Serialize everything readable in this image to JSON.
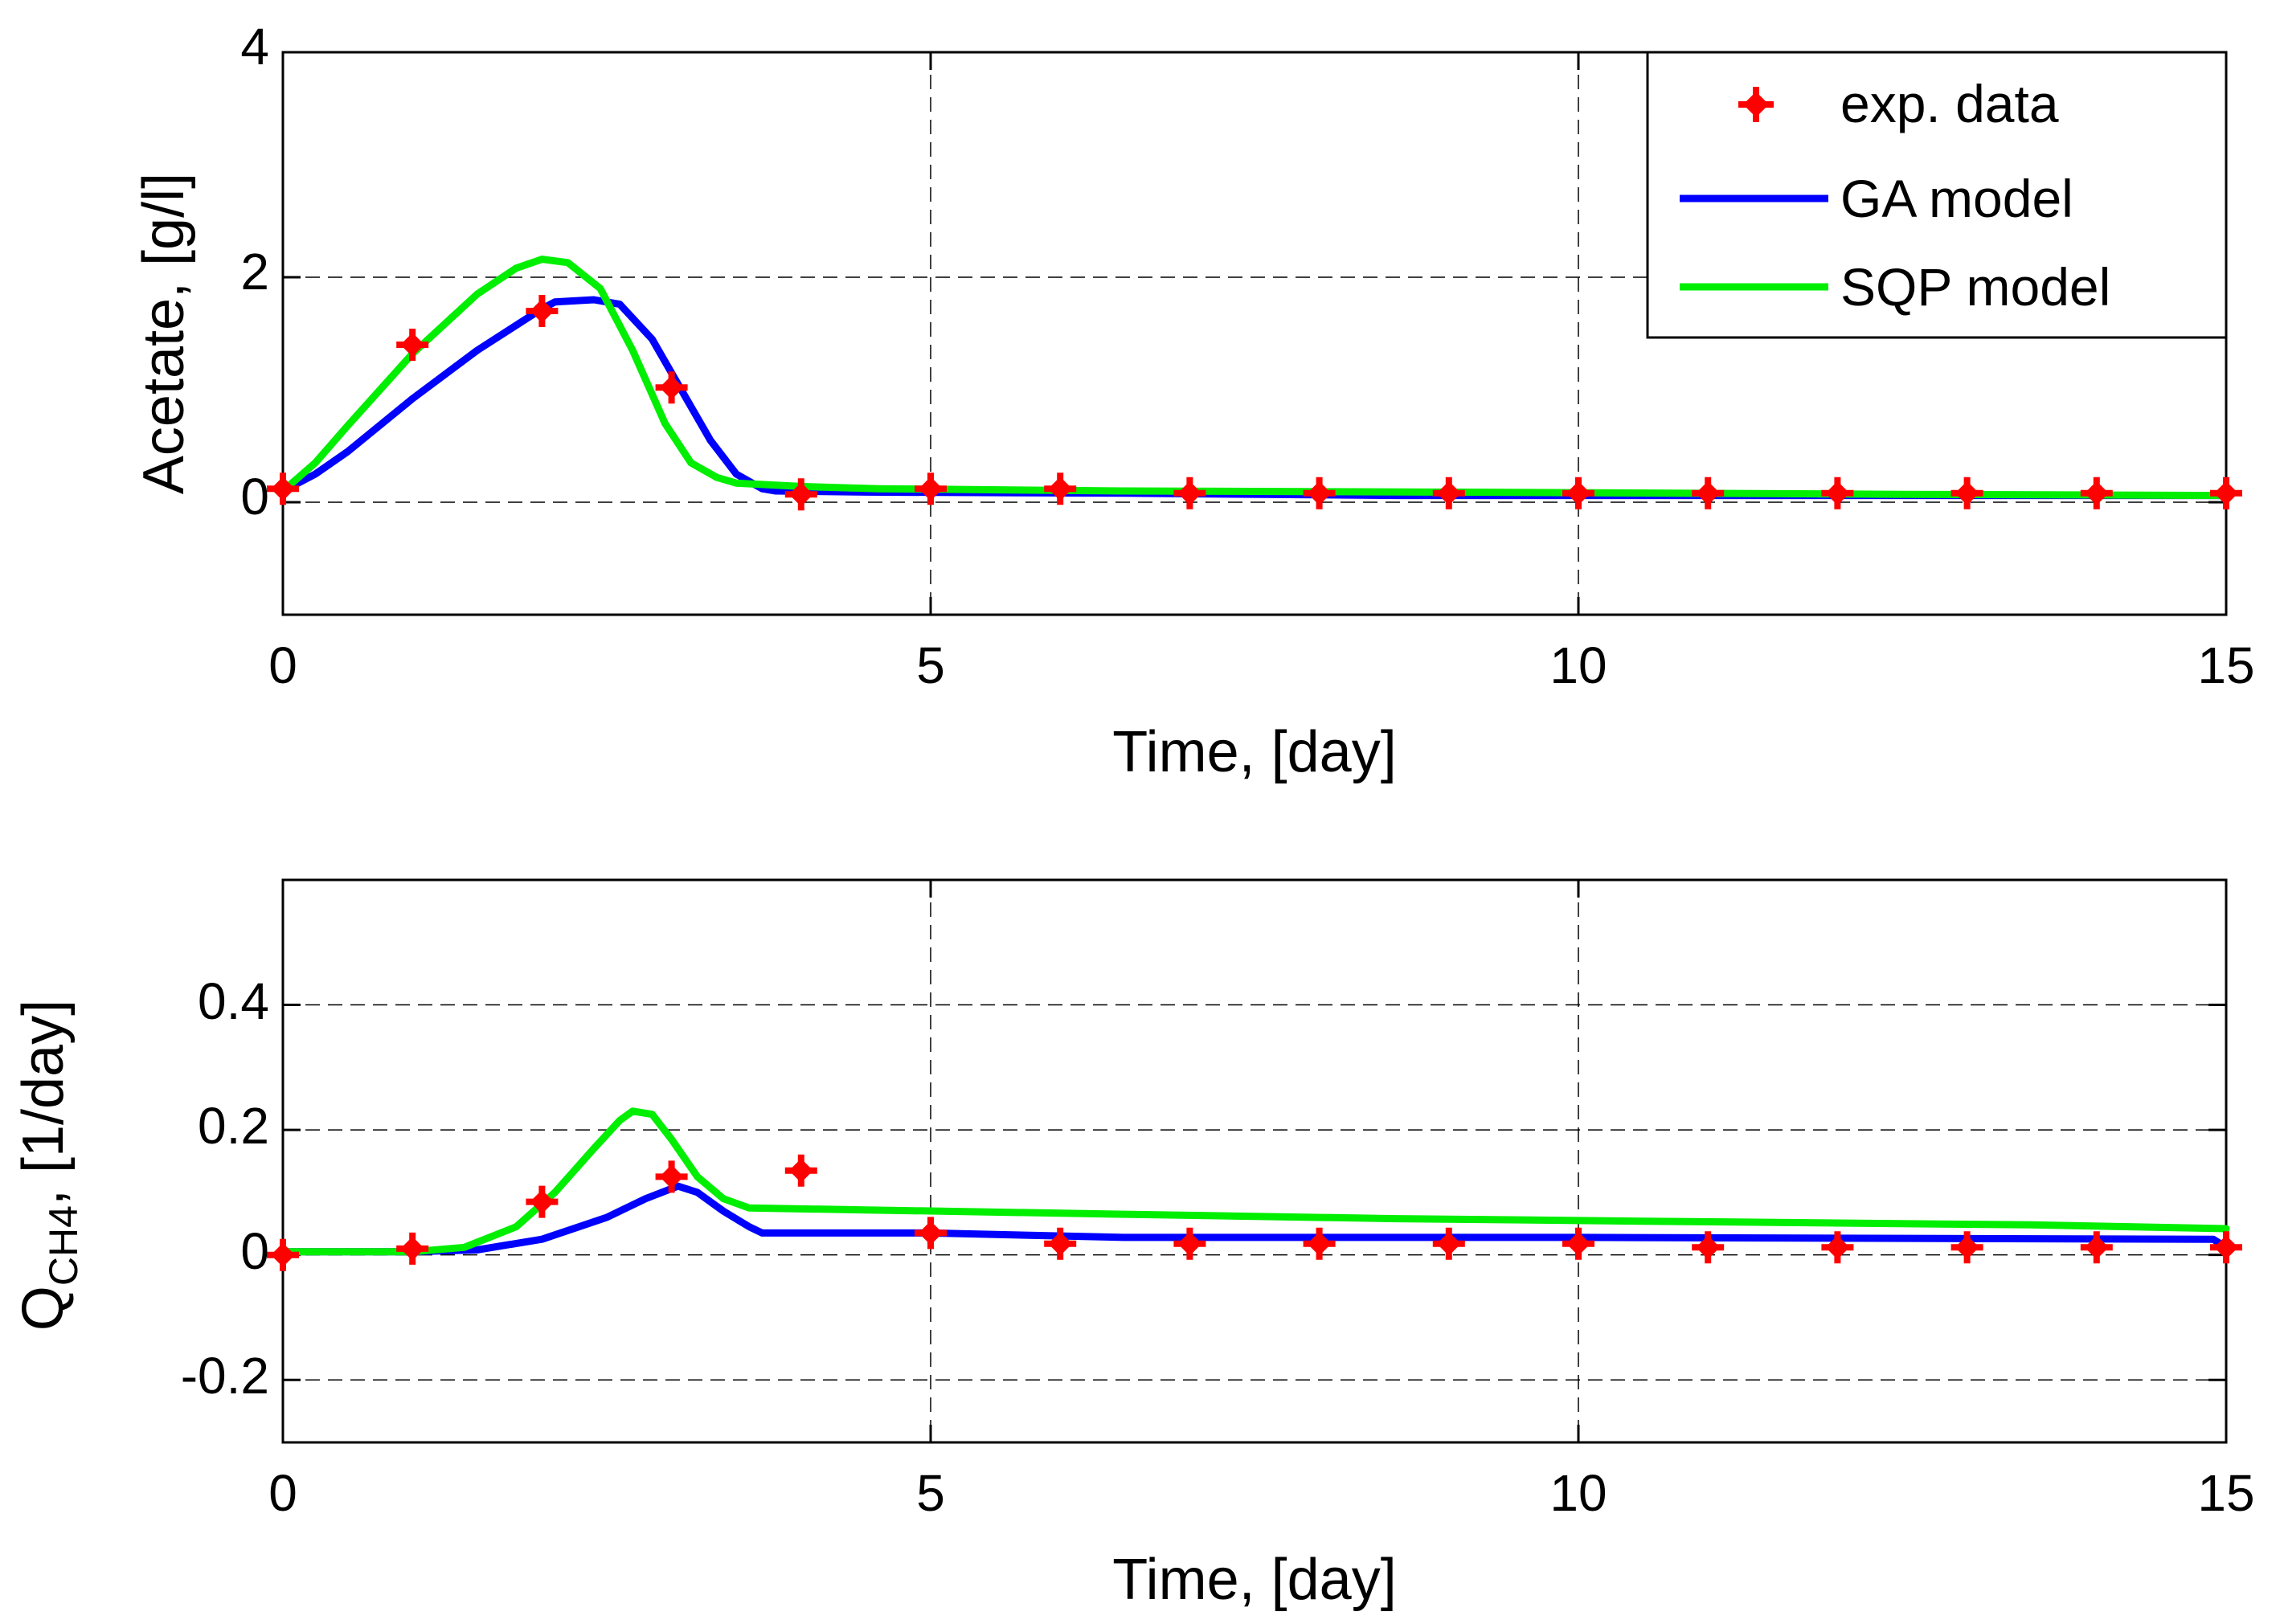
{
  "colors": {
    "exp_marker": "#ff0000",
    "ga_line": "#0000ff",
    "sqp_line": "#00ee00",
    "axis": "#000000",
    "grid": "#000000",
    "background": "#ffffff"
  },
  "legend": {
    "exp_label": "exp. data",
    "ga_label": "GA model",
    "sqp_label": "SQP model"
  },
  "chart_data": [
    {
      "type": "line",
      "id": "acetate",
      "title": "",
      "xlabel": "Time, [day]",
      "ylabel": "Acetate, [g/l]",
      "xlim": [
        0,
        15
      ],
      "ylim": [
        -1,
        4
      ],
      "xticks": [
        0,
        5,
        10,
        15
      ],
      "yticks": [
        0,
        2,
        4
      ],
      "xtick_labels": [
        "0",
        "5",
        "10",
        "15"
      ],
      "ytick_labels": [
        "0",
        "2",
        "4"
      ],
      "xgrid": [
        5,
        10
      ],
      "ygrid": [
        0,
        2
      ],
      "legend_position": "top-right",
      "series": [
        {
          "name": "exp. data",
          "kind": "markers",
          "x": [
            0,
            1,
            2,
            3,
            4,
            5,
            6,
            7,
            8,
            9,
            10,
            11,
            12,
            13,
            14,
            15
          ],
          "y": [
            0.12,
            1.4,
            1.7,
            1.02,
            0.07,
            0.12,
            0.12,
            0.08,
            0.08,
            0.08,
            0.08,
            0.08,
            0.08,
            0.08,
            0.08,
            0.08
          ]
        },
        {
          "name": "GA model",
          "kind": "line",
          "x": [
            0,
            0.25,
            0.5,
            1.0,
            1.5,
            2.0,
            2.1,
            2.4,
            2.6,
            2.85,
            3.1,
            3.3,
            3.5,
            3.7,
            3.8,
            4.5,
            6.5,
            8.6,
            12.5,
            15
          ],
          "y": [
            0.1,
            0.25,
            0.45,
            0.92,
            1.35,
            1.72,
            1.78,
            1.8,
            1.76,
            1.45,
            0.95,
            0.55,
            0.25,
            0.12,
            0.1,
            0.09,
            0.08,
            0.06,
            0.06,
            0.06
          ]
        },
        {
          "name": "SQP model",
          "kind": "line",
          "x": [
            0,
            0.25,
            0.5,
            1.0,
            1.5,
            1.8,
            2.0,
            2.2,
            2.45,
            2.7,
            2.95,
            3.15,
            3.35,
            3.5,
            4.0,
            4.6,
            6.5,
            9.0,
            12.5,
            15
          ],
          "y": [
            0.1,
            0.35,
            0.68,
            1.32,
            1.85,
            2.08,
            2.16,
            2.13,
            1.9,
            1.35,
            0.7,
            0.35,
            0.22,
            0.17,
            0.14,
            0.12,
            0.1,
            0.09,
            0.07,
            0.06
          ]
        }
      ]
    },
    {
      "type": "line",
      "id": "qch4",
      "title": "",
      "xlabel": "Time, [day]",
      "ylabel_main": "Q",
      "ylabel_sub": "CH4",
      "ylabel_rest": ", [1/day]",
      "xlim": [
        0,
        15
      ],
      "ylim": [
        -0.3,
        0.6
      ],
      "xticks": [
        0,
        5,
        10,
        15
      ],
      "yticks": [
        -0.2,
        0,
        0.2,
        0.4
      ],
      "xtick_labels": [
        "0",
        "5",
        "10",
        "15"
      ],
      "ytick_labels": [
        "-0.2",
        "0",
        "0.2",
        "0.4"
      ],
      "xgrid": [
        5,
        10
      ],
      "ygrid": [
        -0.2,
        0,
        0.2,
        0.4
      ],
      "series": [
        {
          "name": "exp. data",
          "kind": "markers",
          "x": [
            0,
            1,
            2,
            3,
            4,
            5,
            6,
            7,
            8,
            9,
            10,
            11,
            12,
            13,
            14,
            15
          ],
          "y": [
            0.0,
            0.01,
            0.085,
            0.125,
            0.135,
            0.035,
            0.018,
            0.018,
            0.018,
            0.018,
            0.018,
            0.012,
            0.012,
            0.012,
            0.012,
            0.012
          ]
        },
        {
          "name": "GA model",
          "kind": "line",
          "x": [
            0,
            1.0,
            1.5,
            2.0,
            2.5,
            2.8,
            3.05,
            3.2,
            3.4,
            3.6,
            3.7,
            5.0,
            6.5,
            10.0,
            14.9,
            15
          ],
          "y": [
            0.005,
            0.005,
            0.008,
            0.025,
            0.06,
            0.09,
            0.11,
            0.1,
            0.07,
            0.045,
            0.035,
            0.035,
            0.028,
            0.028,
            0.025,
            0.012
          ]
        },
        {
          "name": "SQP model",
          "kind": "line",
          "x": [
            0,
            1.0,
            1.4,
            1.8,
            2.1,
            2.4,
            2.6,
            2.7,
            2.85,
            3.0,
            3.2,
            3.4,
            3.6,
            4.5,
            6.5,
            8.6,
            10.5,
            13.5,
            15
          ],
          "y": [
            0.005,
            0.005,
            0.012,
            0.045,
            0.1,
            0.17,
            0.215,
            0.23,
            0.225,
            0.185,
            0.125,
            0.09,
            0.075,
            0.072,
            0.065,
            0.058,
            0.054,
            0.048,
            0.042
          ]
        }
      ]
    }
  ]
}
